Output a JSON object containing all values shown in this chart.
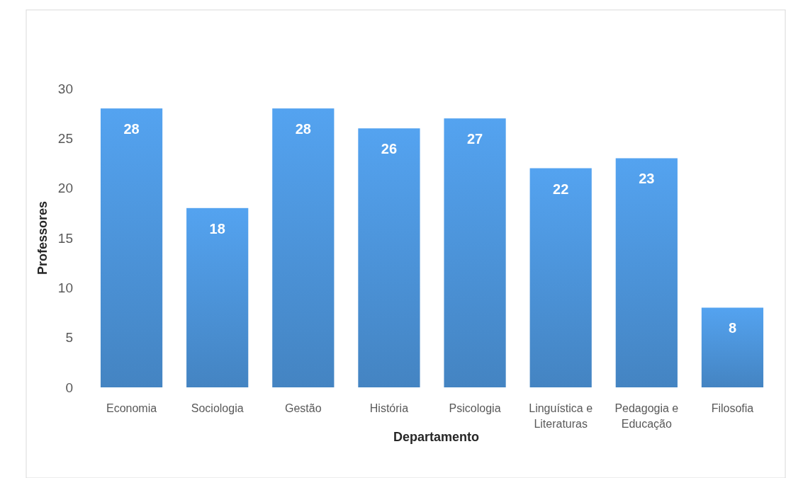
{
  "chart_data": {
    "type": "bar",
    "xlabel": "Departamento",
    "ylabel": "Professores",
    "categories": [
      "Economia",
      "Sociologia",
      "Gestão",
      "História",
      "Psicologia",
      "Linguística e Literaturas",
      "Pedagogia e Educação",
      "Filosofia"
    ],
    "values": [
      28,
      18,
      28,
      26,
      27,
      22,
      23,
      8
    ],
    "color": "#4a90d4",
    "ylim": [
      0,
      30
    ],
    "yticks": [
      0,
      5,
      10,
      15,
      20,
      25,
      30
    ],
    "data_labels": true
  }
}
